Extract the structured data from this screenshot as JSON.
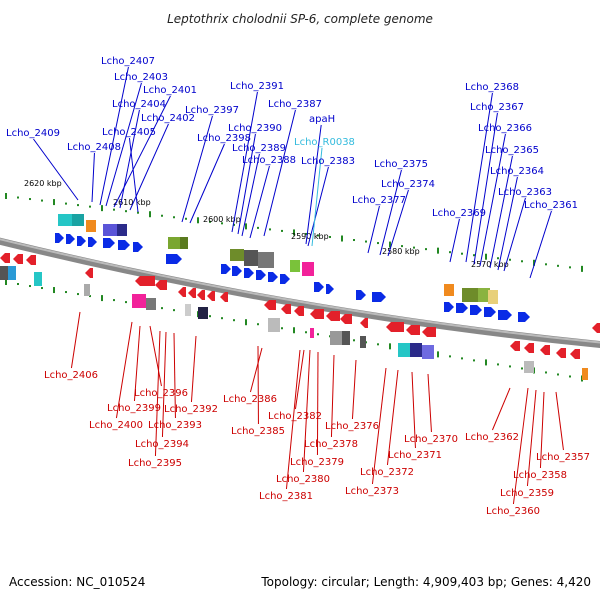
{
  "title": "Leptothrix cholodnii SP-6, complete genome",
  "accession": "Accession: NC_010524",
  "summary": "Topology: circular; Length: 4,909,403 bp; Genes: 4,420",
  "colors": {
    "forward_label": "#0000cc",
    "reverse_label": "#cc0000",
    "rna_label": "#33bbdd",
    "backbone": "#888888",
    "tick": "#228822"
  },
  "scale_labels": [
    "2620 kbp",
    "2610 kbp",
    "2600 kbp",
    "2590 kbp",
    "2580 kbp",
    "2570 kbp"
  ],
  "forward_labels": [
    "Lcho_2409",
    "Lcho_2408",
    "Lcho_2407",
    "Lcho_2403",
    "Lcho_2401",
    "Lcho_2404",
    "Lcho_2402",
    "Lcho_2405",
    "Lcho_2397",
    "Lcho_2398",
    "Lcho_2391",
    "Lcho_2387",
    "Lcho_2390",
    "apaH",
    "Lcho_2389",
    "Lcho_2388",
    "Lcho_2383",
    "Lcho_2375",
    "Lcho_2374",
    "Lcho_2377",
    "Lcho_2368",
    "Lcho_2367",
    "Lcho_2366",
    "Lcho_2365",
    "Lcho_2364",
    "Lcho_2363",
    "Lcho_2369",
    "Lcho_2361"
  ],
  "rna_labels": [
    "Lcho_R0038"
  ],
  "reverse_labels": [
    "Lcho_2406",
    "Lcho_2396",
    "Lcho_2399",
    "Lcho_2392",
    "Lcho_2400",
    "Lcho_2393",
    "Lcho_2394",
    "Lcho_2395",
    "Lcho_2386",
    "Lcho_2382",
    "Lcho_2385",
    "Lcho_2376",
    "Lcho_2378",
    "Lcho_2379",
    "Lcho_2380",
    "Lcho_2381",
    "Lcho_2370",
    "Lcho_2371",
    "Lcho_2372",
    "Lcho_2373",
    "Lcho_2362",
    "Lcho_2357",
    "Lcho_2358",
    "Lcho_2359",
    "Lcho_2360"
  ]
}
